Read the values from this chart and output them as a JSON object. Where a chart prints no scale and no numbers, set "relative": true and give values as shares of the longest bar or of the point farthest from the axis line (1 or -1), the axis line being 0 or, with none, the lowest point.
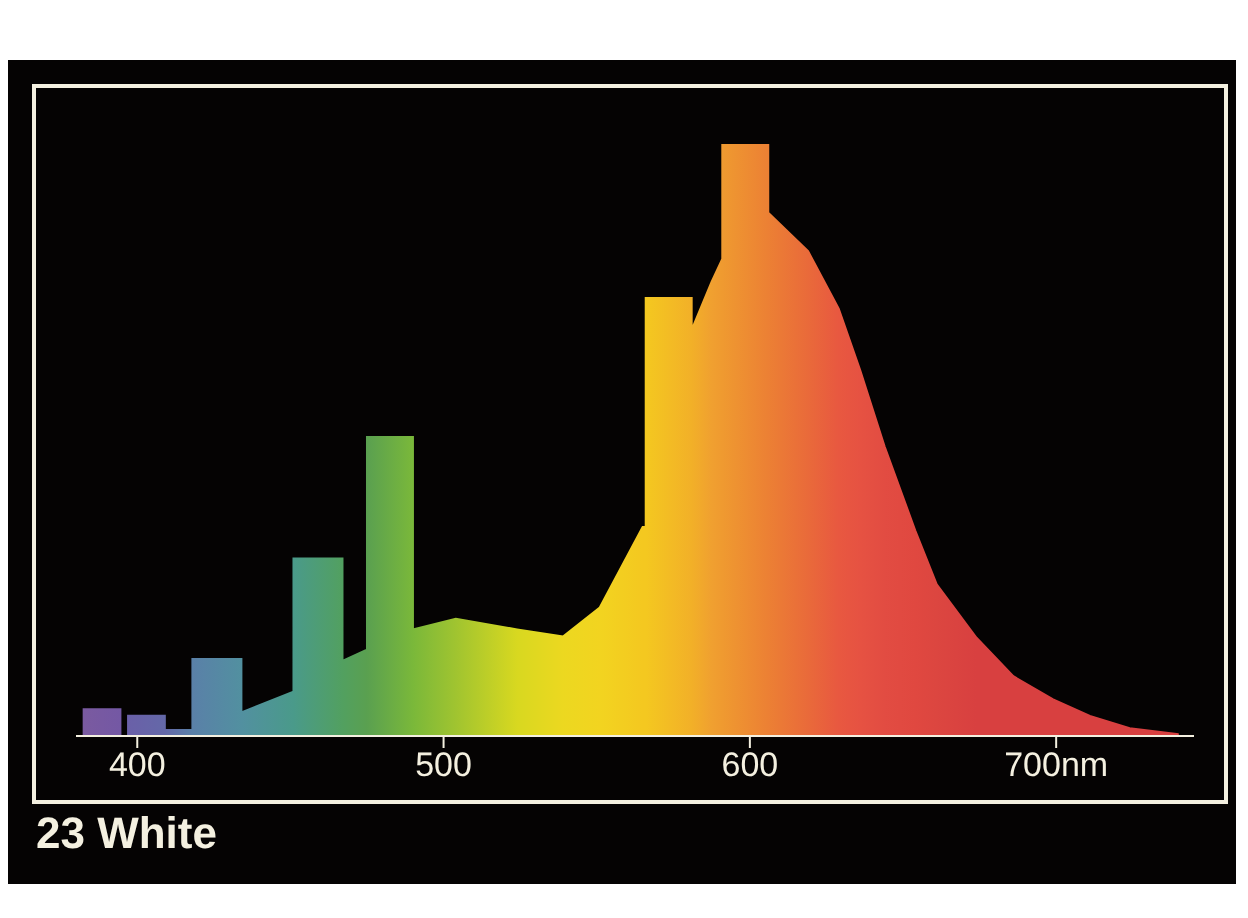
{
  "chart_data": {
    "type": "area",
    "title": "23 White",
    "relative": true,
    "x": [
      382.5,
      382.5,
      394.5,
      394.5,
      397,
      397,
      409,
      409,
      418,
      418,
      434,
      434,
      451,
      451,
      467,
      467,
      475,
      475,
      490,
      490,
      504,
      524,
      539,
      551,
      565,
      566,
      566,
      581,
      581,
      587.5,
      591,
      591,
      606,
      606,
      619,
      629,
      636,
      644,
      654,
      661,
      674,
      686,
      699,
      711,
      724,
      740
    ],
    "series": [
      {
        "values": [
          0,
          0.045,
          0.045,
          0,
          0,
          0.034,
          0.034,
          0.01,
          0.01,
          0.13,
          0.13,
          0.04,
          0.075,
          0.3,
          0.3,
          0.127,
          0.146,
          0.505,
          0.505,
          0.18,
          0.198,
          0.18,
          0.168,
          0.217,
          0.353,
          0.353,
          0.74,
          0.74,
          0.686,
          0.767,
          0.806,
          1,
          1,
          0.884,
          0.819,
          0.722,
          0.618,
          0.489,
          0.347,
          0.256,
          0.166,
          0.101,
          0.062,
          0.034,
          0.013,
          0.003
        ],
        "colors": [
          "#7a5aa0",
          "#7a5aa0",
          "#7458a4",
          "#7458a4",
          "#6a60a8",
          "#6a60a8",
          "#6468a8",
          "#6468a8",
          "#5a80a8",
          "#5a80a8",
          "#5290a0",
          "#5290a0",
          "#4a9a8a",
          "#4a9a8a",
          "#52a060",
          "#52a060",
          "#5aa050",
          "#5aa050",
          "#7ab83a",
          "#7ab83a",
          "#a0c430",
          "#d8d820",
          "#ecd820",
          "#f2d420",
          "#f4c820",
          "#f4c820",
          "#f4c820",
          "#f2b028",
          "#f2b028",
          "#f0a030",
          "#ef9a30",
          "#ef9a30",
          "#ec8034",
          "#ec8034",
          "#e96a3a",
          "#e85840",
          "#e65242",
          "#e24c42",
          "#e04840",
          "#dc4640",
          "#d84040",
          "#d84040",
          "#d84040",
          "#d84040",
          "#d84040",
          "#d84040"
        ]
      }
    ],
    "xlim": [
      380,
      745
    ],
    "xticks": [
      400,
      500,
      600,
      {
        "value": 700,
        "label": "700nm"
      }
    ]
  }
}
